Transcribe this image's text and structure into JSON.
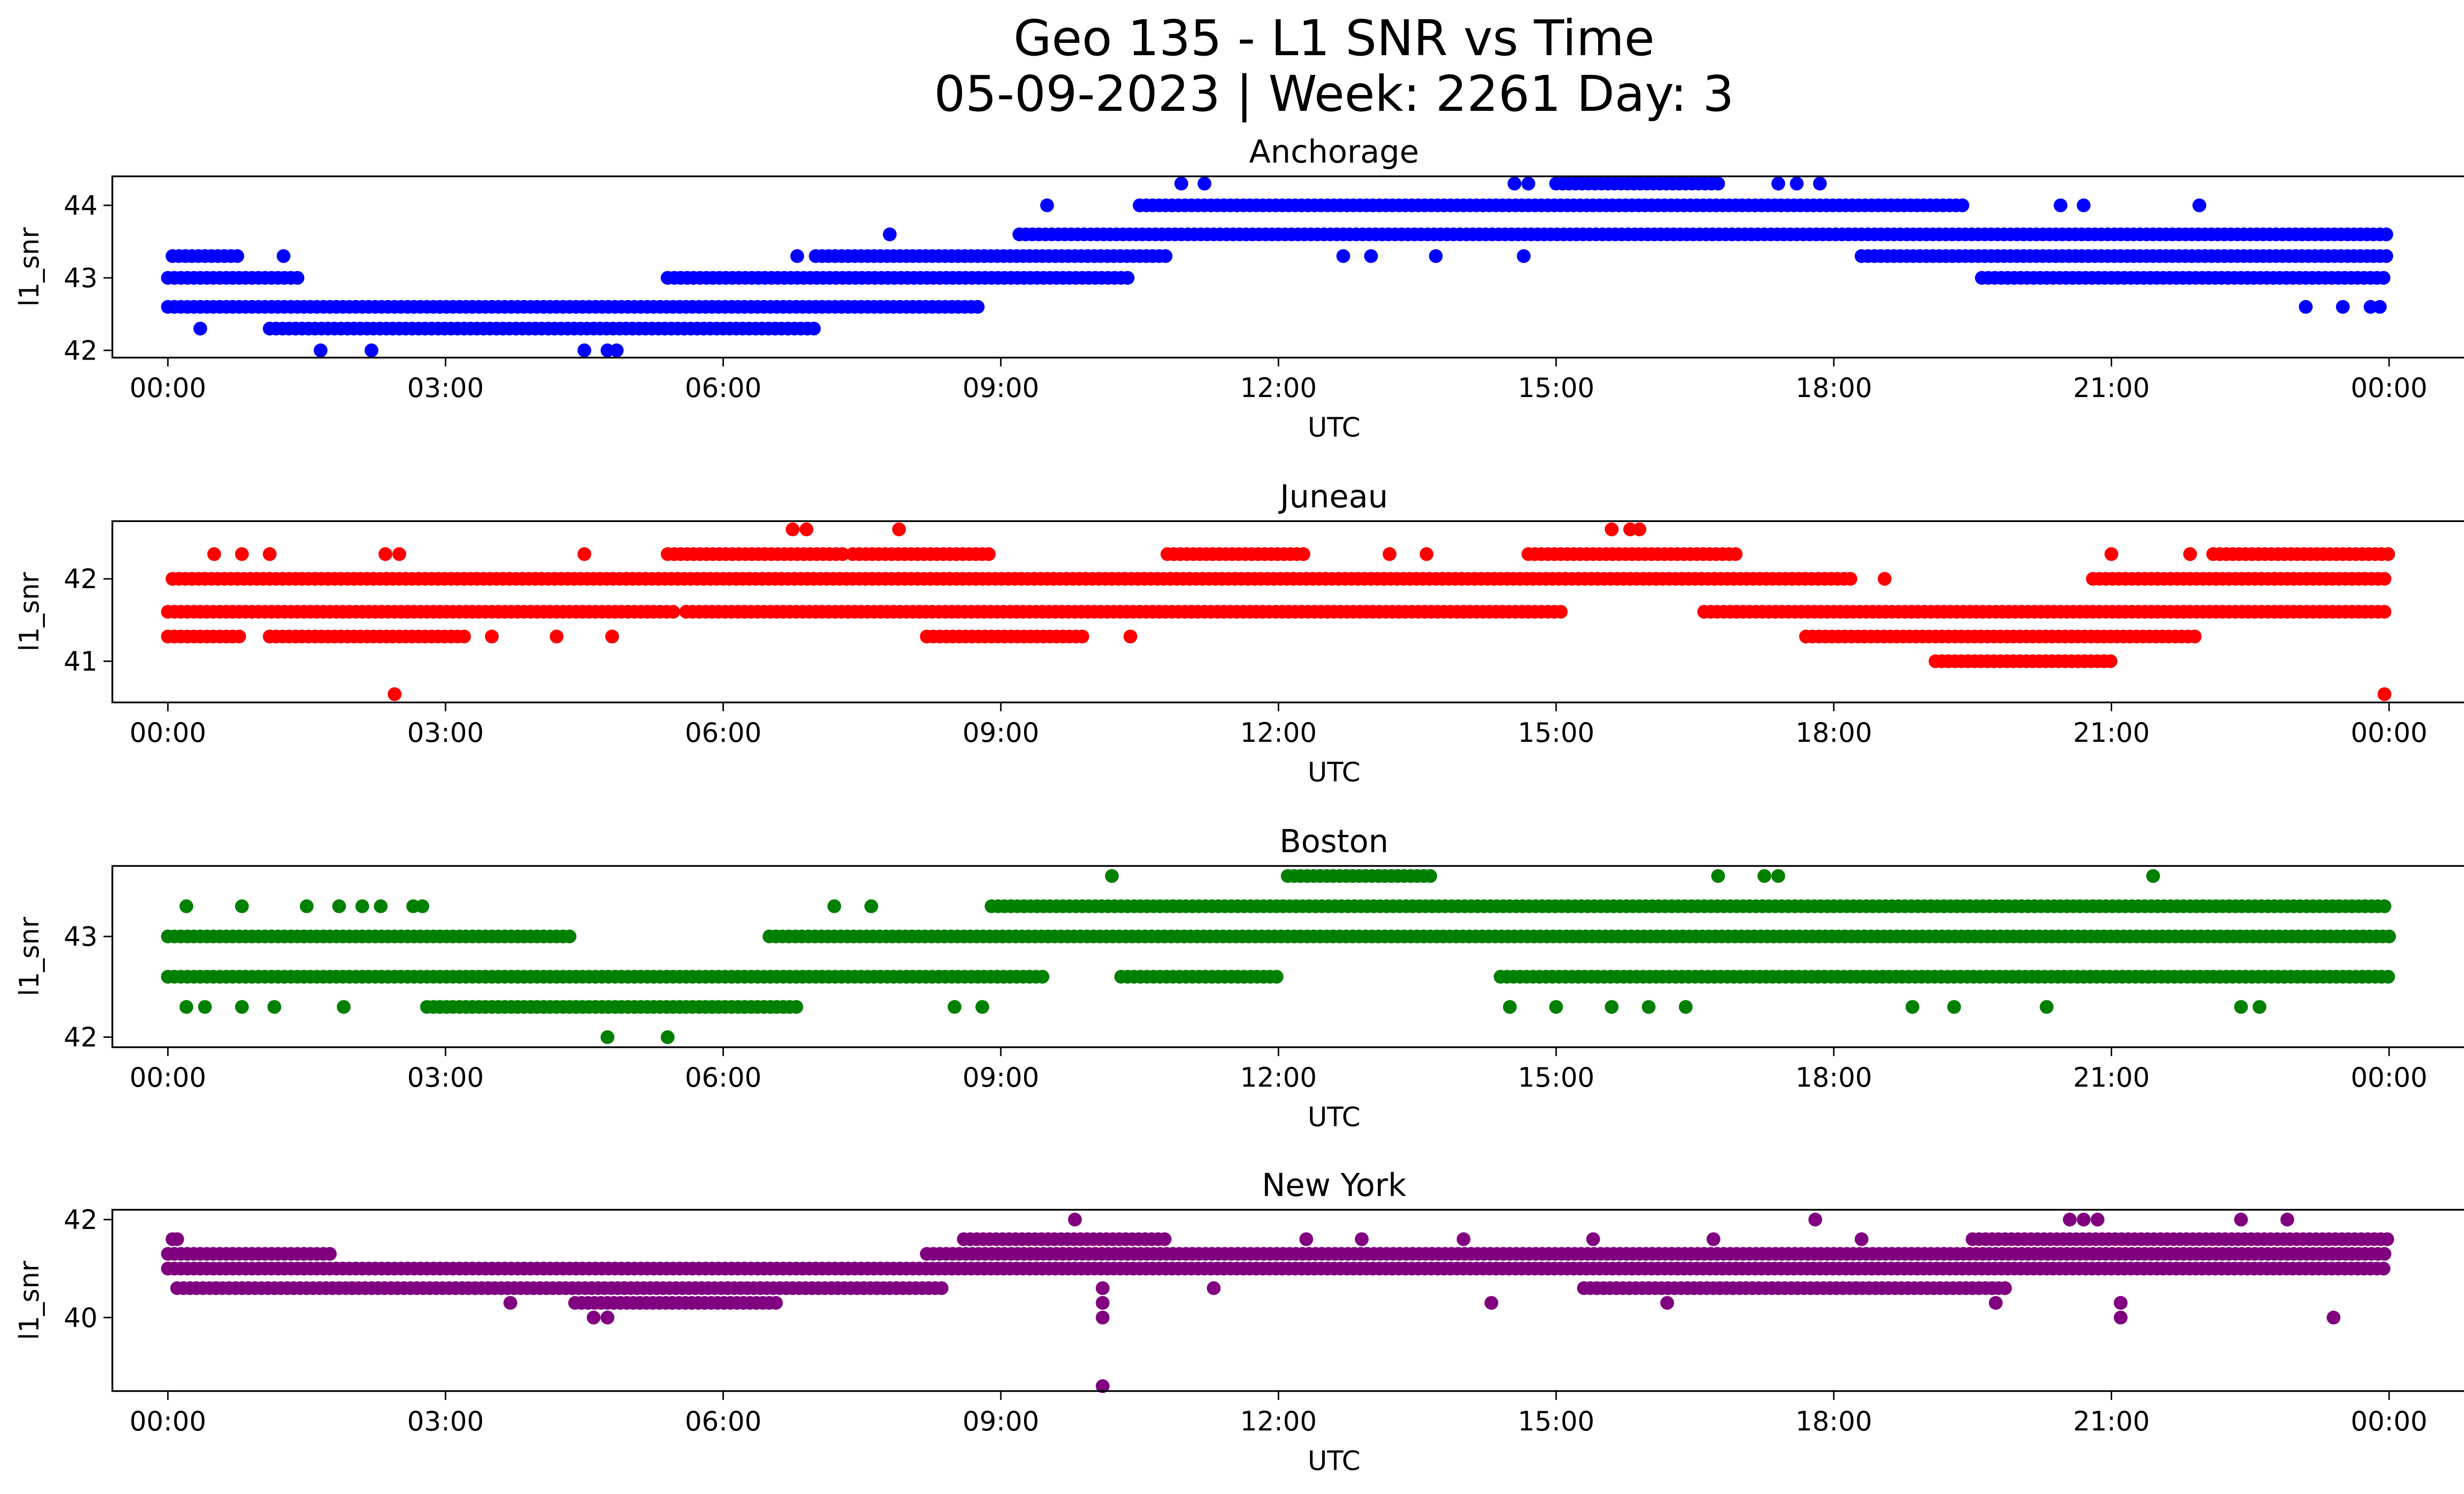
{
  "figure": {
    "title_line1": "Geo 135 - L1 SNR vs Time",
    "title_line2": "05-09-2023 | Week: 2261 Day: 3"
  },
  "chart_data": [
    {
      "type": "scatter",
      "title": "Anchorage",
      "xlabel": "UTC",
      "ylabel": "l1_snr",
      "color": "#0000ff",
      "x_ticks": [
        "00:00",
        "03:00",
        "06:00",
        "09:00",
        "12:00",
        "15:00",
        "18:00",
        "21:00",
        "00:00"
      ],
      "x_range_hours": [
        -0.6,
        25.8
      ],
      "ylim": [
        41.9,
        44.4
      ],
      "y_ticks": [
        42,
        43,
        44
      ],
      "levels": [
        {
          "y": 42.6,
          "ranges": [
            [
              0.0,
              8.8
            ]
          ]
        },
        {
          "y": 42.3,
          "ranges": [
            [
              1.1,
              7.0
            ]
          ]
        },
        {
          "y": 43.0,
          "ranges": [
            [
              0.0,
              1.4
            ],
            [
              5.4,
              10.4
            ],
            [
              19.6,
              24.0
            ]
          ]
        },
        {
          "y": 43.3,
          "ranges": [
            [
              0.05,
              0.8
            ],
            [
              7.0,
              10.8
            ],
            [
              18.3,
              24.0
            ]
          ]
        },
        {
          "y": 43.6,
          "ranges": [
            [
              9.2,
              24.0
            ]
          ]
        },
        {
          "y": 44.0,
          "ranges": [
            [
              10.5,
              19.4
            ]
          ]
        },
        {
          "y": 44.3,
          "ranges": [
            [
              15.0,
              16.8
            ]
          ]
        }
      ],
      "points": [
        {
          "x": 0.35,
          "y": 42.3
        },
        {
          "x": 1.25,
          "y": 43.3
        },
        {
          "x": 1.65,
          "y": 42.0
        },
        {
          "x": 2.2,
          "y": 42.0
        },
        {
          "x": 4.5,
          "y": 42.0
        },
        {
          "x": 4.75,
          "y": 42.0
        },
        {
          "x": 4.85,
          "y": 42.0
        },
        {
          "x": 6.8,
          "y": 43.3
        },
        {
          "x": 7.8,
          "y": 43.6
        },
        {
          "x": 9.5,
          "y": 44.0
        },
        {
          "x": 10.95,
          "y": 44.3
        },
        {
          "x": 11.2,
          "y": 44.3
        },
        {
          "x": 12.7,
          "y": 43.3
        },
        {
          "x": 13.0,
          "y": 43.3
        },
        {
          "x": 13.7,
          "y": 43.3
        },
        {
          "x": 14.55,
          "y": 44.3
        },
        {
          "x": 14.7,
          "y": 44.3
        },
        {
          "x": 14.65,
          "y": 43.3
        },
        {
          "x": 17.4,
          "y": 44.3
        },
        {
          "x": 17.6,
          "y": 44.3
        },
        {
          "x": 17.85,
          "y": 44.3
        },
        {
          "x": 20.45,
          "y": 44.0
        },
        {
          "x": 20.7,
          "y": 44.0
        },
        {
          "x": 21.95,
          "y": 44.0
        },
        {
          "x": 23.1,
          "y": 42.6
        },
        {
          "x": 23.5,
          "y": 42.6
        },
        {
          "x": 23.8,
          "y": 42.6
        },
        {
          "x": 23.9,
          "y": 42.6
        }
      ]
    },
    {
      "type": "scatter",
      "title": "Juneau",
      "xlabel": "UTC",
      "ylabel": "l1_snr",
      "color": "#ff0000",
      "x_ticks": [
        "00:00",
        "03:00",
        "06:00",
        "09:00",
        "12:00",
        "15:00",
        "18:00",
        "21:00",
        "00:00"
      ],
      "x_range_hours": [
        -0.6,
        25.8
      ],
      "ylim": [
        40.5,
        42.7
      ],
      "y_ticks": [
        41,
        42
      ],
      "levels": [
        {
          "y": 41.6,
          "ranges": [
            [
              0.0,
              5.5
            ],
            [
              5.6,
              15.1
            ],
            [
              16.6,
              24.0
            ]
          ]
        },
        {
          "y": 42.0,
          "ranges": [
            [
              0.05,
              18.2
            ],
            [
              20.8,
              24.0
            ]
          ]
        },
        {
          "y": 41.3,
          "ranges": [
            [
              0.0,
              0.8
            ],
            [
              1.1,
              3.2
            ],
            [
              8.2,
              9.9
            ],
            [
              17.7,
              21.9
            ]
          ]
        },
        {
          "y": 42.3,
          "ranges": [
            [
              5.4,
              7.3
            ],
            [
              7.4,
              8.9
            ],
            [
              10.8,
              12.3
            ],
            [
              14.7,
              17.0
            ],
            [
              22.1,
              24.0
            ]
          ]
        },
        {
          "y": 41.0,
          "ranges": [
            [
              19.1,
              21.0
            ]
          ]
        }
      ],
      "points": [
        {
          "x": 0.5,
          "y": 42.3
        },
        {
          "x": 0.8,
          "y": 42.3
        },
        {
          "x": 1.1,
          "y": 42.3
        },
        {
          "x": 2.35,
          "y": 42.3
        },
        {
          "x": 2.5,
          "y": 42.3
        },
        {
          "x": 2.45,
          "y": 40.6
        },
        {
          "x": 3.5,
          "y": 41.3
        },
        {
          "x": 4.2,
          "y": 41.3
        },
        {
          "x": 4.5,
          "y": 42.3
        },
        {
          "x": 4.8,
          "y": 41.3
        },
        {
          "x": 6.75,
          "y": 42.6
        },
        {
          "x": 6.9,
          "y": 42.6
        },
        {
          "x": 7.9,
          "y": 42.6
        },
        {
          "x": 10.4,
          "y": 41.3
        },
        {
          "x": 13.2,
          "y": 42.3
        },
        {
          "x": 13.6,
          "y": 42.3
        },
        {
          "x": 15.6,
          "y": 42.6
        },
        {
          "x": 15.8,
          "y": 42.6
        },
        {
          "x": 15.9,
          "y": 42.6
        },
        {
          "x": 18.55,
          "y": 42.0
        },
        {
          "x": 21.0,
          "y": 42.3
        },
        {
          "x": 21.85,
          "y": 42.3
        },
        {
          "x": 23.95,
          "y": 40.6
        }
      ]
    },
    {
      "type": "scatter",
      "title": "Boston",
      "xlabel": "UTC",
      "ylabel": "l1_snr",
      "color": "#008000",
      "x_ticks": [
        "00:00",
        "03:00",
        "06:00",
        "09:00",
        "12:00",
        "15:00",
        "18:00",
        "21:00",
        "00:00"
      ],
      "x_range_hours": [
        -0.6,
        25.8
      ],
      "ylim": [
        41.9,
        43.7
      ],
      "y_ticks": [
        42,
        43
      ],
      "levels": [
        {
          "y": 43.0,
          "ranges": [
            [
              0.0,
              4.4
            ],
            [
              6.5,
              24.0
            ]
          ]
        },
        {
          "y": 42.6,
          "ranges": [
            [
              0.0,
              9.5
            ],
            [
              10.3,
              12.0
            ],
            [
              14.4,
              24.0
            ]
          ]
        },
        {
          "y": 42.3,
          "ranges": [
            [
              2.8,
              6.8
            ]
          ]
        },
        {
          "y": 43.3,
          "ranges": [
            [
              8.9,
              24.0
            ]
          ]
        },
        {
          "y": 43.6,
          "ranges": [
            [
              12.1,
              13.7
            ]
          ]
        }
      ],
      "points": [
        {
          "x": 0.2,
          "y": 43.3
        },
        {
          "x": 0.8,
          "y": 43.3
        },
        {
          "x": 1.5,
          "y": 43.3
        },
        {
          "x": 1.85,
          "y": 43.3
        },
        {
          "x": 2.1,
          "y": 43.3
        },
        {
          "x": 2.3,
          "y": 43.3
        },
        {
          "x": 2.65,
          "y": 43.3
        },
        {
          "x": 2.75,
          "y": 43.3
        },
        {
          "x": 0.2,
          "y": 42.3
        },
        {
          "x": 0.4,
          "y": 42.3
        },
        {
          "x": 0.8,
          "y": 42.3
        },
        {
          "x": 1.15,
          "y": 42.3
        },
        {
          "x": 1.9,
          "y": 42.3
        },
        {
          "x": 4.75,
          "y": 42.0
        },
        {
          "x": 5.4,
          "y": 42.0
        },
        {
          "x": 7.2,
          "y": 43.3
        },
        {
          "x": 7.6,
          "y": 43.3
        },
        {
          "x": 8.5,
          "y": 42.3
        },
        {
          "x": 8.8,
          "y": 42.3
        },
        {
          "x": 10.2,
          "y": 43.6
        },
        {
          "x": 14.5,
          "y": 42.3
        },
        {
          "x": 15.0,
          "y": 42.3
        },
        {
          "x": 15.6,
          "y": 42.3
        },
        {
          "x": 16.0,
          "y": 42.3
        },
        {
          "x": 16.4,
          "y": 42.3
        },
        {
          "x": 16.75,
          "y": 43.6
        },
        {
          "x": 17.25,
          "y": 43.6
        },
        {
          "x": 17.4,
          "y": 43.6
        },
        {
          "x": 18.85,
          "y": 42.3
        },
        {
          "x": 19.3,
          "y": 42.3
        },
        {
          "x": 20.3,
          "y": 42.3
        },
        {
          "x": 21.45,
          "y": 43.6
        },
        {
          "x": 22.4,
          "y": 42.3
        },
        {
          "x": 22.6,
          "y": 42.3
        }
      ]
    },
    {
      "type": "scatter",
      "title": "New York",
      "xlabel": "UTC",
      "ylabel": "l1_snr",
      "color": "#800080",
      "x_ticks": [
        "00:00",
        "03:00",
        "06:00",
        "09:00",
        "12:00",
        "15:00",
        "18:00",
        "21:00",
        "00:00"
      ],
      "x_range_hours": [
        -0.6,
        25.8
      ],
      "ylim": [
        38.5,
        42.2
      ],
      "y_ticks": [
        40,
        42
      ],
      "levels": [
        {
          "y": 41.0,
          "ranges": [
            [
              0.0,
              24.0
            ]
          ]
        },
        {
          "y": 41.3,
          "ranges": [
            [
              0.0,
              1.8
            ],
            [
              8.2,
              24.0
            ]
          ]
        },
        {
          "y": 40.6,
          "ranges": [
            [
              0.1,
              8.4
            ],
            [
              15.3,
              19.9
            ]
          ]
        },
        {
          "y": 40.3,
          "ranges": [
            [
              4.4,
              6.6
            ]
          ]
        },
        {
          "y": 41.6,
          "ranges": [
            [
              8.6,
              10.8
            ],
            [
              19.5,
              24.0
            ]
          ]
        }
      ],
      "points": [
        {
          "x": 0.05,
          "y": 41.6
        },
        {
          "x": 0.1,
          "y": 41.6
        },
        {
          "x": 3.7,
          "y": 40.3
        },
        {
          "x": 4.6,
          "y": 40.0
        },
        {
          "x": 4.75,
          "y": 40.0
        },
        {
          "x": 9.8,
          "y": 42.0
        },
        {
          "x": 10.1,
          "y": 38.6
        },
        {
          "x": 10.1,
          "y": 40.3
        },
        {
          "x": 10.1,
          "y": 40.0
        },
        {
          "x": 10.1,
          "y": 40.6
        },
        {
          "x": 11.3,
          "y": 40.6
        },
        {
          "x": 12.3,
          "y": 41.6
        },
        {
          "x": 12.9,
          "y": 41.6
        },
        {
          "x": 14.0,
          "y": 41.6
        },
        {
          "x": 14.3,
          "y": 40.3
        },
        {
          "x": 15.4,
          "y": 41.6
        },
        {
          "x": 16.2,
          "y": 40.3
        },
        {
          "x": 16.7,
          "y": 41.6
        },
        {
          "x": 17.8,
          "y": 42.0
        },
        {
          "x": 18.3,
          "y": 41.6
        },
        {
          "x": 19.75,
          "y": 40.3
        },
        {
          "x": 20.55,
          "y": 42.0
        },
        {
          "x": 20.7,
          "y": 42.0
        },
        {
          "x": 20.85,
          "y": 42.0
        },
        {
          "x": 21.1,
          "y": 40.0
        },
        {
          "x": 21.1,
          "y": 40.3
        },
        {
          "x": 22.4,
          "y": 42.0
        },
        {
          "x": 22.9,
          "y": 42.0
        },
        {
          "x": 23.4,
          "y": 40.0
        }
      ]
    }
  ]
}
